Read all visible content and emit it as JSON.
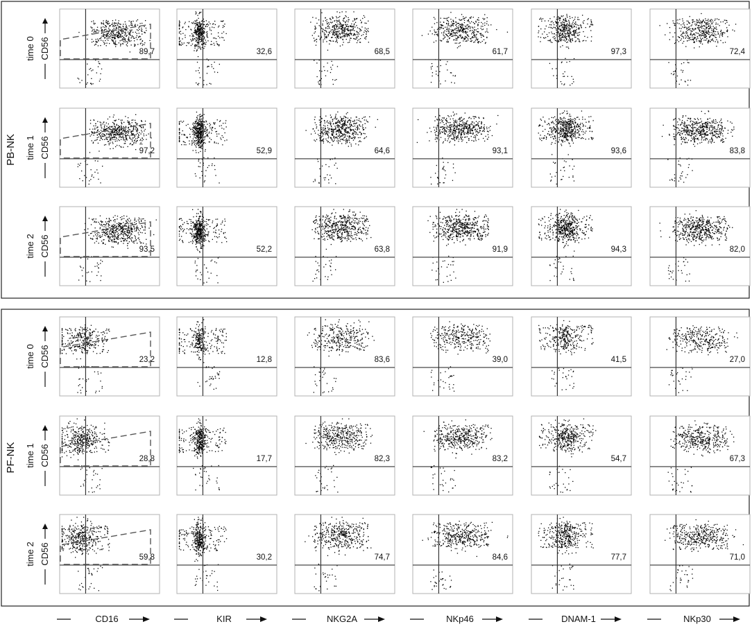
{
  "colors": {
    "dot": "#000000",
    "panel_border": "#b0b0b0",
    "quadrant_lines": "#333333",
    "gate": "#555555",
    "group_border": "#222222"
  },
  "chart_data": {
    "type": "scatter",
    "layout": "grid of flow-cytometry dot plots",
    "x_markers": [
      "CD16",
      "KIR",
      "NKG2A",
      "NKp46",
      "DNAM-1",
      "NKp30"
    ],
    "y_marker": "CD56",
    "groups": [
      {
        "name": "PB-NK",
        "rows": [
          {
            "label": "time 0",
            "ylabel": "CD56",
            "values": [
              "89,7",
              "32,6",
              "68,5",
              "61,7",
              "97,3",
              "72,4"
            ]
          },
          {
            "label": "time 1",
            "ylabel": "CD56",
            "values": [
              "97,2",
              "52,9",
              "64,6",
              "93,1",
              "93,6",
              "83,8"
            ]
          },
          {
            "label": "time 2",
            "ylabel": "CD56",
            "values": [
              "93,5",
              "52,2",
              "63,8",
              "91,9",
              "94,3",
              "82,0"
            ]
          }
        ]
      },
      {
        "name": "PF-NK",
        "rows": [
          {
            "label": "time 0",
            "ylabel": "CD56",
            "values": [
              "23,2",
              "12,8",
              "83,6",
              "39,0",
              "41,5",
              "27,0"
            ]
          },
          {
            "label": "time 1",
            "ylabel": "CD56",
            "values": [
              "28,8",
              "17,7",
              "82,3",
              "83,2",
              "54,7",
              "67,3"
            ]
          },
          {
            "label": "time 2",
            "ylabel": "CD56",
            "values": [
              "59,8",
              "30,2",
              "74,7",
              "84,6",
              "77,7",
              "71,0"
            ]
          }
        ]
      }
    ],
    "grid": false,
    "legend": "none"
  }
}
